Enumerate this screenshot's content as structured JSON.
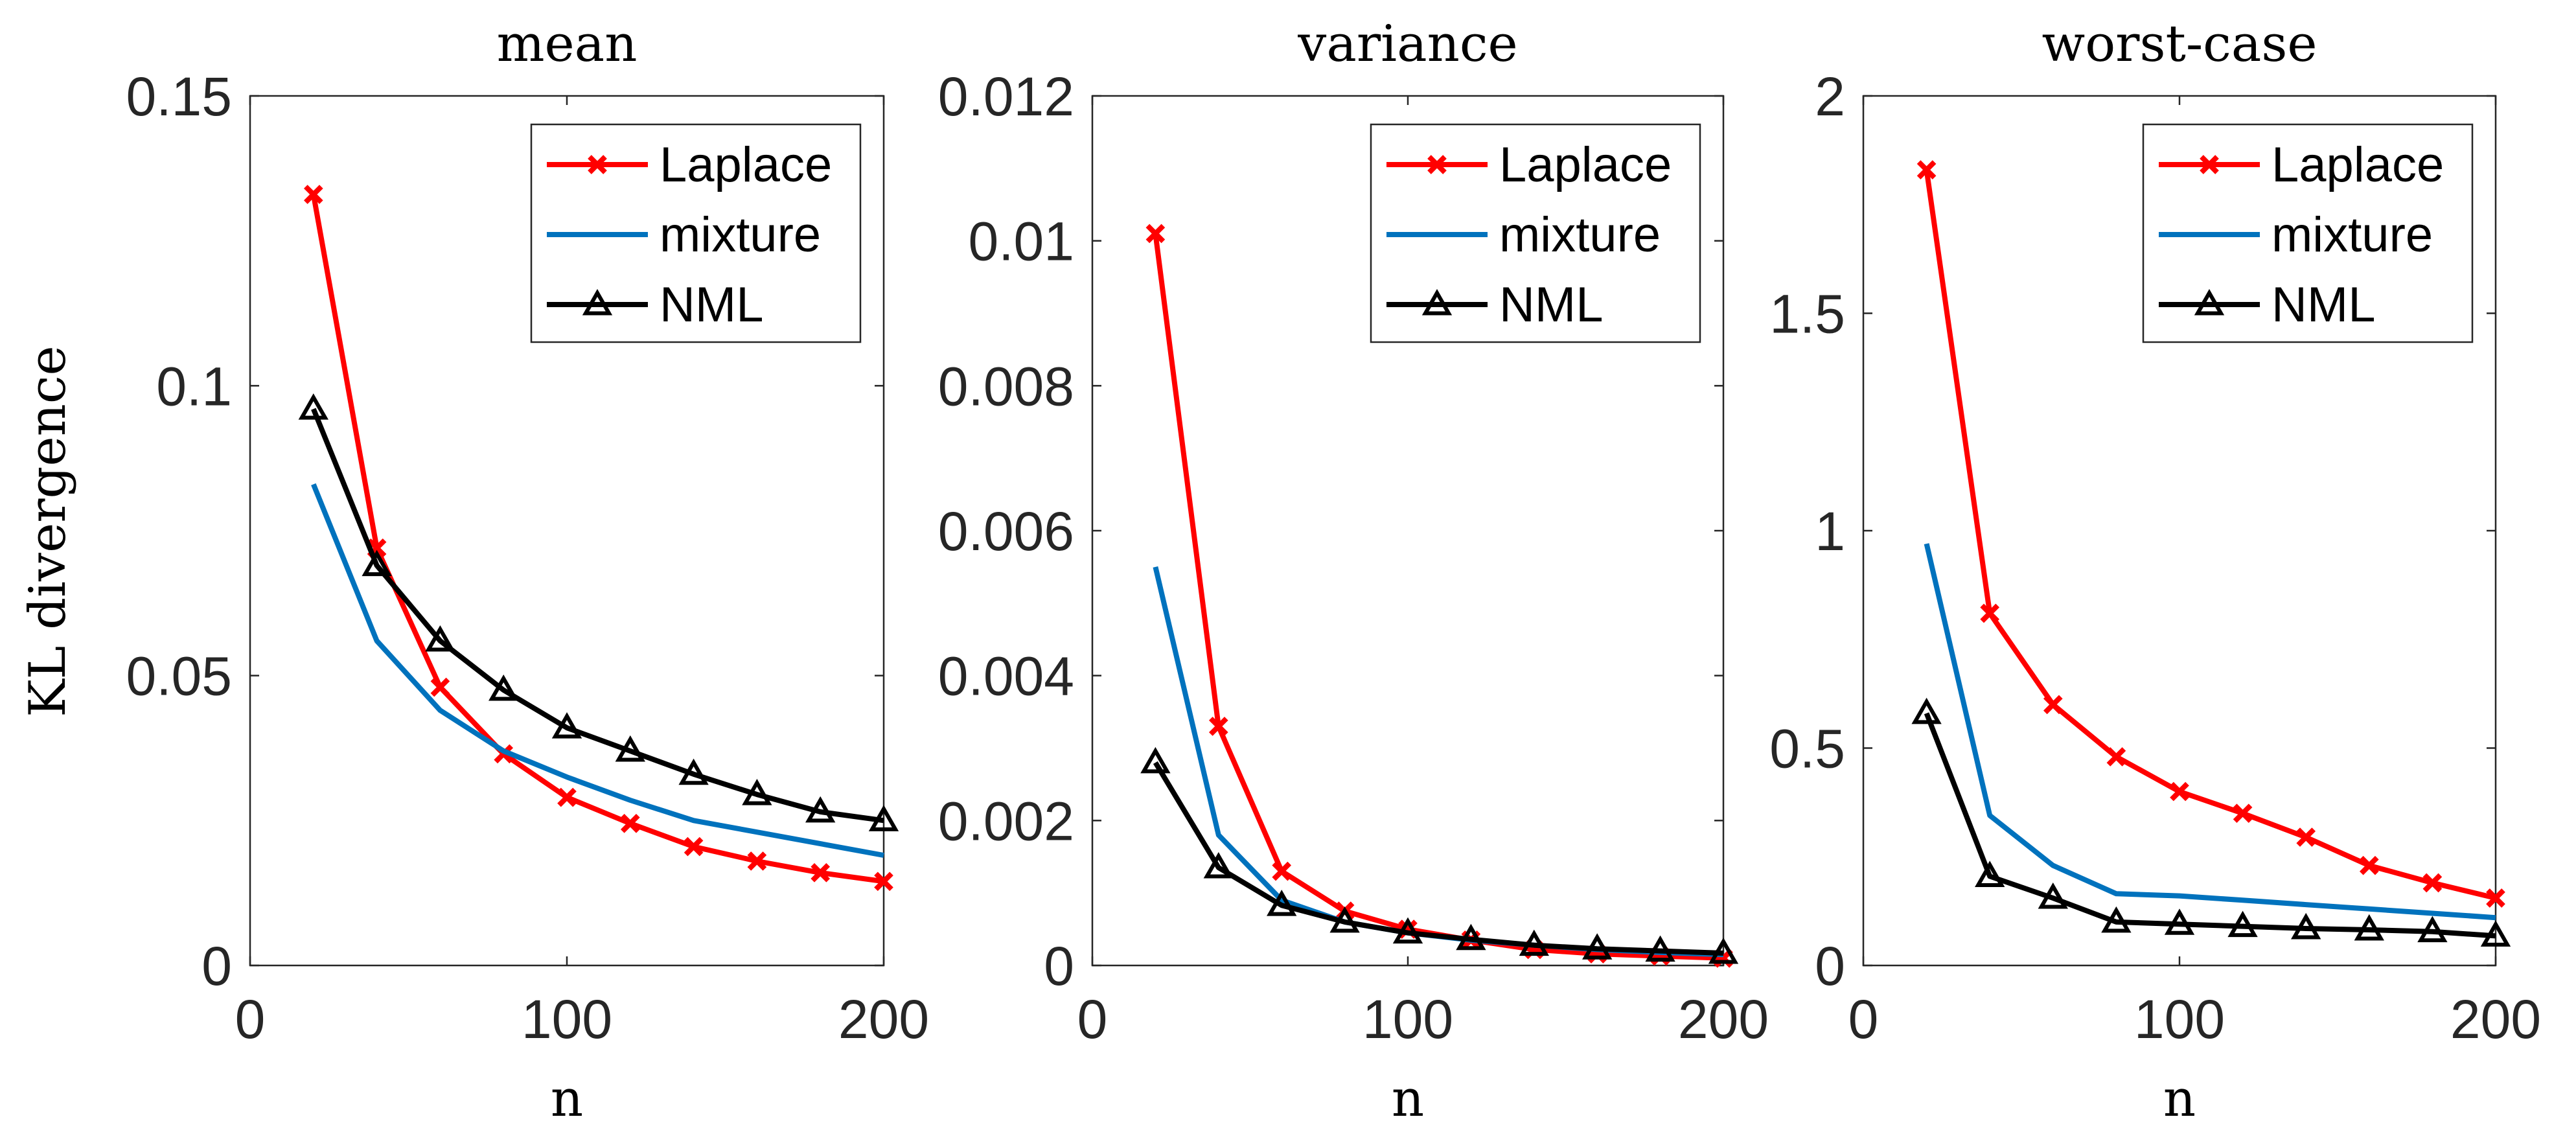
{
  "chart_data": {
    "type": "line",
    "ylabel": "KL divergence",
    "xlabel": "n",
    "panels": [
      {
        "title": "mean",
        "xlim": [
          0,
          200
        ],
        "ylim": [
          0,
          0.15
        ],
        "xticks": [
          0,
          100,
          200
        ],
        "xtick_labels": [
          "0",
          "100",
          "200"
        ],
        "yticks": [
          0,
          0.05,
          0.1,
          0.15
        ],
        "ytick_labels": [
          "0",
          "0.05",
          "0.1",
          "0.15"
        ],
        "x": [
          20,
          40,
          60,
          80,
          100,
          120,
          140,
          160,
          180,
          200
        ],
        "series": [
          {
            "name": "Laplace",
            "color": "#ff0000",
            "marker": "x",
            "values": [
              0.133,
              0.072,
              0.048,
              0.0365,
              0.029,
              0.0245,
              0.0205,
              0.018,
              0.016,
              0.0145
            ]
          },
          {
            "name": "mixture",
            "color": "#0072bd",
            "marker": "none",
            "values": [
              0.083,
              0.056,
              0.044,
              0.037,
              0.0325,
              0.0285,
              0.025,
              0.023,
              0.021,
              0.019
            ]
          },
          {
            "name": "NML",
            "color": "#000000",
            "marker": "triangle",
            "values": [
              0.096,
              0.069,
              0.056,
              0.0475,
              0.041,
              0.037,
              0.033,
              0.0295,
              0.0265,
              0.025
            ]
          }
        ]
      },
      {
        "title": "variance",
        "xlim": [
          0,
          200
        ],
        "ylim": [
          0,
          0.012
        ],
        "xticks": [
          0,
          100,
          200
        ],
        "xtick_labels": [
          "0",
          "100",
          "200"
        ],
        "yticks": [
          0,
          0.002,
          0.004,
          0.006,
          0.008,
          0.01,
          0.012
        ],
        "ytick_labels": [
          "0",
          "0.002",
          "0.004",
          "0.006",
          "0.008",
          "0.01",
          "0.012"
        ],
        "x": [
          20,
          40,
          60,
          80,
          100,
          120,
          140,
          160,
          180,
          200
        ],
        "series": [
          {
            "name": "Laplace",
            "color": "#ff0000",
            "marker": "x",
            "values": [
              0.0101,
              0.0033,
              0.0013,
              0.00075,
              0.0005,
              0.00035,
              0.00022,
              0.00016,
              0.00013,
              0.0001
            ]
          },
          {
            "name": "mixture",
            "color": "#0072bd",
            "marker": "none",
            "values": [
              0.0055,
              0.0018,
              0.0009,
              0.0006,
              0.00045,
              0.00035,
              0.00028,
              0.00022,
              0.00018,
              0.00015
            ]
          },
          {
            "name": "NML",
            "color": "#000000",
            "marker": "triangle",
            "values": [
              0.0028,
              0.00135,
              0.00083,
              0.0006,
              0.00045,
              0.00036,
              0.00028,
              0.00023,
              0.0002,
              0.00017
            ]
          }
        ]
      },
      {
        "title": "worst-case",
        "xlim": [
          0,
          200
        ],
        "ylim": [
          0,
          2
        ],
        "xticks": [
          0,
          100,
          200
        ],
        "xtick_labels": [
          "0",
          "100",
          "200"
        ],
        "yticks": [
          0,
          0.5,
          1,
          1.5,
          2
        ],
        "ytick_labels": [
          "0",
          "0.5",
          "1",
          "1.5",
          "2"
        ],
        "x": [
          20,
          40,
          60,
          80,
          100,
          120,
          140,
          160,
          180,
          200
        ],
        "series": [
          {
            "name": "Laplace",
            "color": "#ff0000",
            "marker": "x",
            "values": [
              1.83,
              0.81,
              0.6,
              0.48,
              0.4,
              0.35,
              0.295,
              0.23,
              0.19,
              0.155
            ]
          },
          {
            "name": "mixture",
            "color": "#0072bd",
            "marker": "none",
            "values": [
              0.97,
              0.345,
              0.23,
              0.165,
              0.16,
              0.15,
              0.14,
              0.13,
              0.12,
              0.11
            ]
          },
          {
            "name": "NML",
            "color": "#000000",
            "marker": "triangle",
            "values": [
              0.58,
              0.205,
              0.155,
              0.1,
              0.095,
              0.09,
              0.085,
              0.082,
              0.078,
              0.068
            ]
          }
        ]
      }
    ]
  }
}
